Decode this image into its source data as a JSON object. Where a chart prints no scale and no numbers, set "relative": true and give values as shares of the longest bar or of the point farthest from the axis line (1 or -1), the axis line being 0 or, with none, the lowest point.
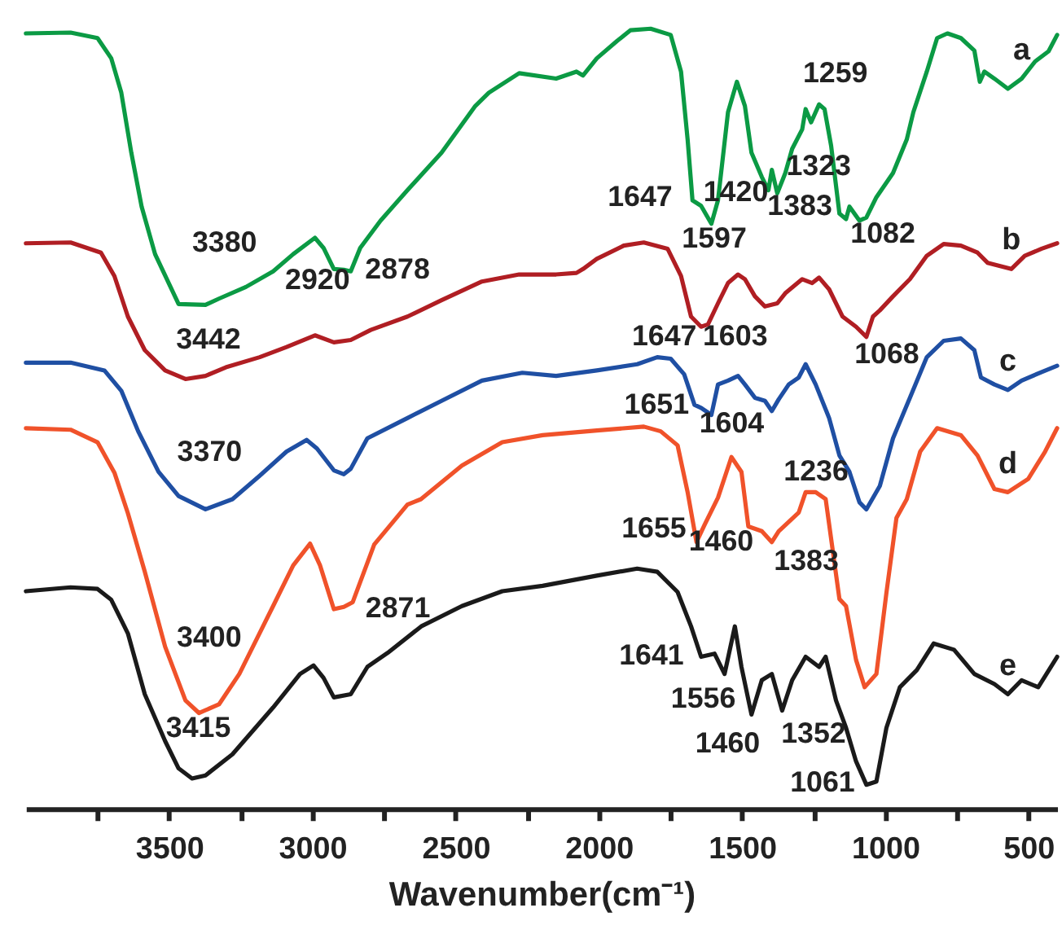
{
  "chart_data": {
    "type": "line",
    "relative": true,
    "xlabel": "Wavenumber(cm⁻¹)",
    "xlim": [
      4000,
      400
    ],
    "xticks": [
      {
        "value": 3750,
        "label": null
      },
      3500,
      {
        "value": 3250,
        "label": null
      },
      3000,
      {
        "value": 2750,
        "label": null
      },
      2500,
      {
        "value": 2250,
        "label": null
      },
      2000,
      {
        "value": 1750,
        "label": null
      },
      1500,
      {
        "value": 1250,
        "label": null
      },
      1000,
      {
        "value": 750,
        "label": null
      },
      500
    ],
    "tick_labels": "x",
    "grid": false,
    "legend": false,
    "marker": "none",
    "line_style": "solid",
    "series": [
      {
        "name": "a",
        "color": "#0b9a44",
        "x": [
          4000,
          3844,
          3750,
          3702,
          3667,
          3632,
          3596,
          3549,
          3467,
          3373,
          3326,
          3232,
          3137,
          3067,
          2991,
          2961,
          2925,
          2890,
          2866,
          2833,
          2762,
          2668,
          2549,
          2431,
          2384,
          2278,
          2149,
          2078,
          2055,
          2007,
          1937,
          1890,
          1819,
          1749,
          1713,
          1690,
          1673,
          1643,
          1607,
          1584,
          1549,
          1518,
          1490,
          1467,
          1431,
          1408,
          1396,
          1377,
          1349,
          1325,
          1290,
          1278,
          1259,
          1231,
          1212,
          1189,
          1160,
          1137,
          1125,
          1090,
          1066,
          1031,
          973,
          925,
          902,
          855,
          819,
          783,
          736,
          689,
          670,
          654,
          619,
          572,
          524,
          477,
          430,
          400
        ],
        "values": [
          0.994,
          0.995,
          0.988,
          0.962,
          0.918,
          0.841,
          0.772,
          0.711,
          0.647,
          0.646,
          0.654,
          0.669,
          0.689,
          0.711,
          0.732,
          0.719,
          0.692,
          0.691,
          0.689,
          0.719,
          0.754,
          0.793,
          0.841,
          0.901,
          0.918,
          0.943,
          0.936,
          0.945,
          0.94,
          0.962,
          0.984,
          0.998,
          1.0,
          0.992,
          0.945,
          0.858,
          0.78,
          0.773,
          0.75,
          0.78,
          0.893,
          0.932,
          0.901,
          0.841,
          0.81,
          0.793,
          0.819,
          0.789,
          0.815,
          0.846,
          0.871,
          0.897,
          0.88,
          0.903,
          0.897,
          0.85,
          0.763,
          0.756,
          0.772,
          0.754,
          0.758,
          0.784,
          0.815,
          0.858,
          0.893,
          0.945,
          0.988,
          0.994,
          0.988,
          0.972,
          0.932,
          0.945,
          0.936,
          0.923,
          0.936,
          0.958,
          0.971,
          0.992
        ]
      },
      {
        "name": "b",
        "color": "#b01e23",
        "x": [
          4000,
          3844,
          3738,
          3691,
          3644,
          3585,
          3514,
          3443,
          3373,
          3302,
          3184,
          3090,
          2991,
          2925,
          2866,
          2796,
          2668,
          2549,
          2408,
          2278,
          2149,
          2078,
          2055,
          2007,
          1913,
          1843,
          1760,
          1713,
          1678,
          1643,
          1619,
          1584,
          1549,
          1514,
          1490,
          1455,
          1420,
          1377,
          1349,
          1290,
          1255,
          1231,
          1196,
          1149,
          1102,
          1066,
          1043,
          1019,
          973,
          914,
          855,
          796,
          736,
          678,
          643,
          560,
          513,
          454,
          400
        ],
        "values": [
          0.725,
          0.726,
          0.713,
          0.683,
          0.631,
          0.588,
          0.562,
          0.551,
          0.555,
          0.566,
          0.579,
          0.592,
          0.607,
          0.598,
          0.601,
          0.614,
          0.631,
          0.652,
          0.676,
          0.685,
          0.685,
          0.687,
          0.692,
          0.705,
          0.722,
          0.726,
          0.718,
          0.683,
          0.631,
          0.618,
          0.621,
          0.648,
          0.674,
          0.685,
          0.679,
          0.657,
          0.644,
          0.648,
          0.661,
          0.679,
          0.674,
          0.681,
          0.666,
          0.631,
          0.618,
          0.605,
          0.631,
          0.639,
          0.657,
          0.679,
          0.709,
          0.724,
          0.722,
          0.713,
          0.7,
          0.692,
          0.709,
          0.718,
          0.725
        ]
      },
      {
        "name": "c",
        "color": "#1f4fa3",
        "x": [
          4000,
          3844,
          3726,
          3667,
          3608,
          3537,
          3467,
          3373,
          3279,
          3184,
          3090,
          3020,
          2984,
          2925,
          2890,
          2866,
          2808,
          2668,
          2549,
          2408,
          2267,
          2149,
          2007,
          1866,
          1796,
          1749,
          1702,
          1666,
          1643,
          1607,
          1584,
          1549,
          1514,
          1490,
          1455,
          1420,
          1396,
          1372,
          1337,
          1302,
          1278,
          1243,
          1196,
          1160,
          1125,
          1090,
          1066,
          1019,
          973,
          914,
          855,
          796,
          736,
          689,
          666,
          619,
          572,
          524,
          454,
          400
        ],
        "values": [
          0.572,
          0.572,
          0.562,
          0.536,
          0.484,
          0.432,
          0.401,
          0.384,
          0.397,
          0.427,
          0.458,
          0.473,
          0.462,
          0.434,
          0.429,
          0.436,
          0.475,
          0.501,
          0.523,
          0.549,
          0.559,
          0.555,
          0.562,
          0.57,
          0.579,
          0.577,
          0.557,
          0.518,
          0.514,
          0.505,
          0.544,
          0.549,
          0.555,
          0.544,
          0.527,
          0.523,
          0.51,
          0.525,
          0.544,
          0.553,
          0.57,
          0.544,
          0.501,
          0.453,
          0.432,
          0.393,
          0.384,
          0.414,
          0.475,
          0.527,
          0.579,
          0.6,
          0.603,
          0.588,
          0.553,
          0.544,
          0.537,
          0.549,
          0.56,
          0.568
        ]
      },
      {
        "name": "d",
        "color": "#f0522a",
        "x": [
          4000,
          3844,
          3750,
          3691,
          3644,
          3585,
          3514,
          3443,
          3396,
          3326,
          3255,
          3137,
          3067,
          3008,
          2973,
          2925,
          2890,
          2859,
          2784,
          2668,
          2621,
          2478,
          2337,
          2196,
          2007,
          1843,
          1784,
          1725,
          1690,
          1659,
          1631,
          1584,
          1537,
          1502,
          1478,
          1431,
          1396,
          1372,
          1337,
          1302,
          1278,
          1243,
          1208,
          1160,
          1137,
          1102,
          1072,
          1031,
          996,
          961,
          925,
          878,
          819,
          736,
          678,
          619,
          572,
          501,
          442,
          400
        ],
        "values": [
          0.488,
          0.486,
          0.47,
          0.431,
          0.379,
          0.304,
          0.208,
          0.139,
          0.123,
          0.134,
          0.173,
          0.26,
          0.312,
          0.34,
          0.312,
          0.256,
          0.259,
          0.265,
          0.339,
          0.39,
          0.397,
          0.44,
          0.47,
          0.479,
          0.485,
          0.49,
          0.484,
          0.466,
          0.406,
          0.342,
          0.364,
          0.399,
          0.451,
          0.432,
          0.362,
          0.356,
          0.342,
          0.356,
          0.368,
          0.38,
          0.406,
          0.406,
          0.397,
          0.269,
          0.26,
          0.191,
          0.156,
          0.173,
          0.277,
          0.373,
          0.397,
          0.458,
          0.488,
          0.479,
          0.453,
          0.41,
          0.406,
          0.423,
          0.458,
          0.488
        ]
      },
      {
        "name": "e",
        "color": "#1a1a1a",
        "x": [
          4000,
          3844,
          3750,
          3702,
          3644,
          3585,
          3514,
          3467,
          3420,
          3373,
          3279,
          3137,
          3043,
          2996,
          2961,
          2925,
          2866,
          2808,
          2737,
          2620,
          2478,
          2337,
          2196,
          2007,
          1866,
          1796,
          1725,
          1678,
          1643,
          1596,
          1561,
          1525,
          1502,
          1467,
          1431,
          1396,
          1360,
          1325,
          1278,
          1231,
          1208,
          1172,
          1137,
          1102,
          1066,
          1031,
          996,
          949,
          890,
          831,
          760,
          689,
          619,
          572,
          524,
          466,
          400
        ],
        "values": [
          0.279,
          0.284,
          0.282,
          0.268,
          0.225,
          0.147,
          0.087,
          0.052,
          0.039,
          0.043,
          0.07,
          0.13,
          0.173,
          0.184,
          0.168,
          0.143,
          0.147,
          0.182,
          0.2,
          0.234,
          0.26,
          0.279,
          0.286,
          0.299,
          0.308,
          0.304,
          0.278,
          0.234,
          0.195,
          0.199,
          0.173,
          0.234,
          0.182,
          0.121,
          0.165,
          0.173,
          0.126,
          0.165,
          0.195,
          0.182,
          0.195,
          0.139,
          0.104,
          0.061,
          0.031,
          0.035,
          0.104,
          0.156,
          0.178,
          0.212,
          0.204,
          0.173,
          0.16,
          0.147,
          0.165,
          0.156,
          0.195
        ]
      }
    ],
    "annotations": [
      {
        "text": "3380",
        "x": 3380,
        "y": 0.646
      },
      {
        "text": "2920",
        "x": 2920,
        "y": 0.691
      },
      {
        "text": "2878",
        "x": 2878,
        "y": 0.69
      },
      {
        "text": "1259",
        "x": 1259,
        "y": 0.88
      },
      {
        "text": "1647",
        "x": 1647,
        "y": 0.773
      },
      {
        "text": "1420",
        "x": 1420,
        "y": 0.8
      },
      {
        "text": "1323",
        "x": 1323,
        "y": 0.846
      },
      {
        "text": "1383",
        "x": 1383,
        "y": 0.79
      },
      {
        "text": "1597",
        "x": 1597,
        "y": 0.763
      },
      {
        "text": "1082",
        "x": 1082,
        "y": 0.755
      },
      {
        "text": "3442",
        "x": 3442,
        "y": 0.551
      },
      {
        "text": "1647",
        "x": 1647,
        "y": 0.619
      },
      {
        "text": "1603",
        "x": 1603,
        "y": 0.634
      },
      {
        "text": "1068",
        "x": 1068,
        "y": 0.605
      },
      {
        "text": "1651",
        "x": 1651,
        "y": 0.515
      },
      {
        "text": "1604",
        "x": 1604,
        "y": 0.505
      },
      {
        "text": "3370",
        "x": 3370,
        "y": 0.384
      },
      {
        "text": "1236",
        "x": 1236,
        "y": 0.404
      },
      {
        "text": "1655",
        "x": 1655,
        "y": 0.36
      },
      {
        "text": "1460",
        "x": 1460,
        "y": 0.36
      },
      {
        "text": "1383",
        "x": 1383,
        "y": 0.35
      },
      {
        "text": "2871",
        "x": 2871,
        "y": 0.264
      },
      {
        "text": "3400",
        "x": 3400,
        "y": 0.123
      },
      {
        "text": "3415",
        "x": 3415,
        "y": 0.04
      },
      {
        "text": "1641",
        "x": 1641,
        "y": 0.196
      },
      {
        "text": "1556",
        "x": 1556,
        "y": 0.175
      },
      {
        "text": "1460",
        "x": 1460,
        "y": 0.13
      },
      {
        "text": "1352",
        "x": 1352,
        "y": 0.135
      },
      {
        "text": "1061",
        "x": 1061,
        "y": 0.031
      }
    ]
  }
}
